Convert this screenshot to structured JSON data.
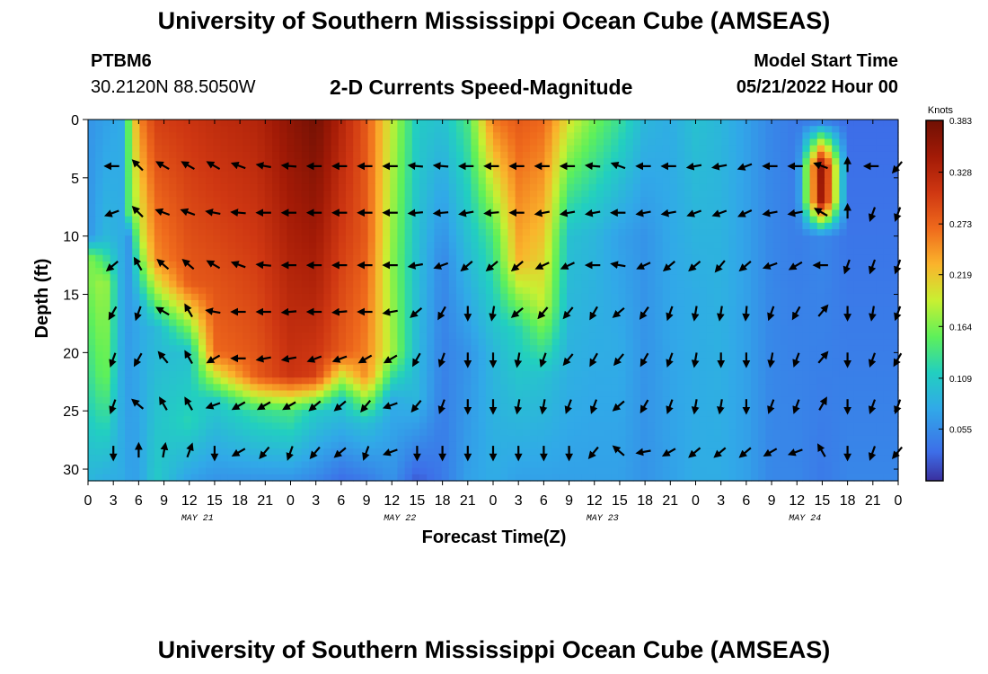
{
  "header": {
    "title": "University of Southern Mississippi Ocean Cube (AMSEAS)",
    "station": "PTBM6",
    "coords": "30.2120N  88.5050W",
    "plot_title": "2-D Currents Speed-Magnitude",
    "start_label": "Model Start Time",
    "start_value": "05/21/2022 Hour 00"
  },
  "footer": {
    "title": "University of Southern Mississippi Ocean Cube (AMSEAS)"
  },
  "chart_data": {
    "type": "heatmap",
    "title": "2-D Currents Speed-Magnitude",
    "xlabel": "Forecast Time(Z)",
    "ylabel": "Depth (ft)",
    "x_ticks": [
      "0",
      "3",
      "6",
      "9",
      "12",
      "15",
      "18",
      "21",
      "0",
      "3",
      "6",
      "9",
      "12",
      "15",
      "18",
      "21",
      "0",
      "3",
      "6",
      "9",
      "12",
      "15",
      "18",
      "21",
      "0",
      "3",
      "6",
      "9",
      "12",
      "15",
      "18",
      "21",
      "0"
    ],
    "date_labels": [
      {
        "hour": 12,
        "label": "MAY 21"
      },
      {
        "hour": 36,
        "label": "MAY 22"
      },
      {
        "hour": 60,
        "label": "MAY 23"
      },
      {
        "hour": 84,
        "label": "MAY 24"
      }
    ],
    "x_range_hours": [
      0,
      96
    ],
    "y_ticks": [
      0,
      5,
      10,
      15,
      20,
      25,
      30
    ],
    "y_range_ft": [
      0,
      31
    ],
    "colorbar": {
      "unit": "Knots",
      "min": 0,
      "max": 0.383,
      "tick_labels": [
        "0.383",
        "0.328",
        "0.273",
        "0.219",
        "0.164",
        "0.109",
        "0.055"
      ],
      "tick_values": [
        0.383,
        0.328,
        0.273,
        0.219,
        0.164,
        0.109,
        0.055
      ]
    },
    "speed_profile_knots": [
      {
        "hour": 0,
        "profile": [
          [
            0,
            0.06
          ],
          [
            10,
            0.06
          ],
          [
            12,
            0.17
          ],
          [
            31,
            0.09
          ]
        ]
      },
      {
        "hour": 2,
        "profile": [
          [
            0,
            0.07
          ],
          [
            10,
            0.09
          ],
          [
            14,
            0.18
          ],
          [
            22,
            0.16
          ],
          [
            31,
            0.08
          ]
        ]
      },
      {
        "hour": 4,
        "profile": [
          [
            0,
            0.08
          ],
          [
            31,
            0.08
          ]
        ]
      },
      {
        "hour": 5,
        "profile": [
          [
            0,
            0.17
          ],
          [
            8,
            0.16
          ],
          [
            10,
            0.06
          ],
          [
            31,
            0.07
          ]
        ]
      },
      {
        "hour": 6,
        "profile": [
          [
            0,
            0.25
          ],
          [
            10,
            0.18
          ],
          [
            16,
            0.08
          ],
          [
            31,
            0.07
          ]
        ]
      },
      {
        "hour": 8,
        "profile": [
          [
            0,
            0.3
          ],
          [
            12,
            0.25
          ],
          [
            18,
            0.09
          ],
          [
            24,
            0.1
          ],
          [
            31,
            0.11
          ]
        ]
      },
      {
        "hour": 12,
        "profile": [
          [
            0,
            0.31
          ],
          [
            14,
            0.28
          ],
          [
            20,
            0.1
          ],
          [
            26,
            0.12
          ],
          [
            31,
            0.07
          ]
        ]
      },
      {
        "hour": 15,
        "profile": [
          [
            0,
            0.32
          ],
          [
            20,
            0.27
          ],
          [
            24,
            0.11
          ],
          [
            31,
            0.06
          ]
        ]
      },
      {
        "hour": 20,
        "profile": [
          [
            0,
            0.33
          ],
          [
            22,
            0.28
          ],
          [
            25,
            0.13
          ],
          [
            31,
            0.06
          ]
        ]
      },
      {
        "hour": 24,
        "profile": [
          [
            0,
            0.36
          ],
          [
            22,
            0.31
          ],
          [
            25,
            0.14
          ],
          [
            31,
            0.06
          ]
        ]
      },
      {
        "hour": 27,
        "profile": [
          [
            0,
            0.38
          ],
          [
            15,
            0.33
          ],
          [
            22,
            0.3
          ],
          [
            25,
            0.11
          ],
          [
            31,
            0.05
          ]
        ]
      },
      {
        "hour": 30,
        "profile": [
          [
            0,
            0.33
          ],
          [
            20,
            0.28
          ],
          [
            24,
            0.11
          ],
          [
            31,
            0.03
          ]
        ]
      },
      {
        "hour": 33,
        "profile": [
          [
            0,
            0.28
          ],
          [
            10,
            0.28
          ],
          [
            22,
            0.25
          ],
          [
            26,
            0.1
          ],
          [
            31,
            0.04
          ]
        ]
      },
      {
        "hour": 36,
        "profile": [
          [
            0,
            0.19
          ],
          [
            12,
            0.17
          ],
          [
            20,
            0.18
          ],
          [
            24,
            0.08
          ],
          [
            31,
            0.06
          ]
        ]
      },
      {
        "hour": 39,
        "profile": [
          [
            0,
            0.11
          ],
          [
            10,
            0.1
          ],
          [
            24,
            0.09
          ],
          [
            31,
            0.02
          ]
        ]
      },
      {
        "hour": 42,
        "profile": [
          [
            0,
            0.1
          ],
          [
            12,
            0.05
          ],
          [
            31,
            0.04
          ]
        ]
      },
      {
        "hour": 45,
        "profile": [
          [
            0,
            0.14
          ],
          [
            10,
            0.1
          ],
          [
            20,
            0.06
          ],
          [
            31,
            0.07
          ]
        ]
      },
      {
        "hour": 48,
        "profile": [
          [
            0,
            0.26
          ],
          [
            10,
            0.14
          ],
          [
            20,
            0.09
          ],
          [
            31,
            0.08
          ]
        ]
      },
      {
        "hour": 51,
        "profile": [
          [
            0,
            0.28
          ],
          [
            12,
            0.23
          ],
          [
            18,
            0.12
          ],
          [
            31,
            0.07
          ]
        ]
      },
      {
        "hour": 54,
        "profile": [
          [
            0,
            0.27
          ],
          [
            16,
            0.19
          ],
          [
            22,
            0.1
          ],
          [
            31,
            0.07
          ]
        ]
      },
      {
        "hour": 57,
        "profile": [
          [
            0,
            0.2
          ],
          [
            10,
            0.1
          ],
          [
            31,
            0.07
          ]
        ]
      },
      {
        "hour": 60,
        "profile": [
          [
            0,
            0.16
          ],
          [
            10,
            0.09
          ],
          [
            31,
            0.07
          ]
        ]
      },
      {
        "hour": 63,
        "profile": [
          [
            0,
            0.13
          ],
          [
            10,
            0.07
          ],
          [
            20,
            0.08
          ],
          [
            31,
            0.07
          ]
        ]
      },
      {
        "hour": 66,
        "profile": [
          [
            0,
            0.09
          ],
          [
            10,
            0.06
          ],
          [
            31,
            0.06
          ]
        ]
      },
      {
        "hour": 69,
        "profile": [
          [
            0,
            0.08
          ],
          [
            31,
            0.07
          ]
        ]
      },
      {
        "hour": 72,
        "profile": [
          [
            0,
            0.1
          ],
          [
            15,
            0.08
          ],
          [
            31,
            0.08
          ]
        ]
      },
      {
        "hour": 75,
        "profile": [
          [
            0,
            0.09
          ],
          [
            31,
            0.08
          ]
        ]
      },
      {
        "hour": 78,
        "profile": [
          [
            0,
            0.07
          ],
          [
            31,
            0.07
          ]
        ]
      },
      {
        "hour": 81,
        "profile": [
          [
            0,
            0.05
          ],
          [
            31,
            0.05
          ]
        ]
      },
      {
        "hour": 84,
        "profile": [
          [
            0,
            0.04
          ],
          [
            31,
            0.05
          ]
        ]
      },
      {
        "hour": 87,
        "profile": [
          [
            0,
            0.03
          ],
          [
            4,
            0.37
          ],
          [
            7,
            0.36
          ],
          [
            10,
            0.05
          ],
          [
            31,
            0.04
          ]
        ]
      },
      {
        "hour": 90,
        "profile": [
          [
            0,
            0.03
          ],
          [
            31,
            0.05
          ]
        ]
      },
      {
        "hour": 96,
        "profile": [
          [
            0,
            0.03
          ],
          [
            31,
            0.05
          ]
        ]
      }
    ],
    "current_vector_grid": {
      "hours": [
        0,
        3,
        6,
        9,
        12,
        15,
        18,
        21,
        24,
        27,
        30,
        33,
        36,
        39,
        42,
        45,
        48,
        51,
        54,
        57,
        60,
        63,
        66,
        69,
        72,
        75,
        78,
        81,
        84,
        87,
        90,
        93,
        96
      ],
      "depths_ft": [
        0,
        4,
        8,
        12.5,
        16.5,
        20.5,
        24.5,
        28.5
      ],
      "directions_deg": [
        [
          -1,
          -1,
          -1,
          -1,
          -1,
          -1,
          -1,
          -1,
          -1,
          -1,
          -1,
          -1,
          -1,
          -1,
          -1,
          -1,
          -1,
          -1,
          -1,
          -1,
          -1,
          -1,
          -1,
          -1,
          -1,
          -1,
          -1,
          -1,
          -1,
          -1,
          -1,
          -1,
          -1
        ],
        [
          -1,
          270,
          315,
          300,
          300,
          300,
          290,
          280,
          275,
          270,
          270,
          270,
          270,
          275,
          275,
          270,
          270,
          270,
          270,
          270,
          275,
          290,
          270,
          270,
          260,
          260,
          250,
          270,
          270,
          290,
          0,
          270,
          220
        ],
        [
          -1,
          250,
          315,
          290,
          290,
          280,
          275,
          270,
          270,
          270,
          270,
          270,
          270,
          265,
          265,
          260,
          265,
          270,
          260,
          260,
          260,
          270,
          260,
          260,
          250,
          250,
          245,
          260,
          260,
          300,
          0,
          200,
          200
        ],
        [
          -1,
          230,
          330,
          310,
          310,
          300,
          290,
          275,
          270,
          270,
          270,
          270,
          270,
          260,
          250,
          230,
          230,
          230,
          245,
          245,
          270,
          280,
          245,
          230,
          230,
          220,
          230,
          250,
          240,
          270,
          200,
          200,
          200
        ],
        [
          -1,
          210,
          200,
          300,
          330,
          280,
          270,
          270,
          265,
          270,
          265,
          270,
          260,
          230,
          210,
          180,
          190,
          230,
          220,
          220,
          210,
          230,
          215,
          200,
          190,
          190,
          185,
          200,
          210,
          40,
          180,
          190,
          200
        ],
        [
          -1,
          200,
          210,
          320,
          330,
          240,
          270,
          260,
          260,
          250,
          250,
          240,
          240,
          210,
          200,
          180,
          180,
          190,
          200,
          220,
          210,
          220,
          210,
          200,
          190,
          180,
          180,
          190,
          200,
          40,
          180,
          200,
          210
        ],
        [
          -1,
          200,
          310,
          330,
          330,
          250,
          240,
          240,
          240,
          230,
          230,
          220,
          250,
          220,
          200,
          180,
          180,
          190,
          190,
          200,
          200,
          230,
          210,
          200,
          190,
          190,
          180,
          200,
          200,
          30,
          180,
          200,
          200
        ],
        [
          -1,
          180,
          0,
          10,
          20,
          180,
          240,
          220,
          200,
          220,
          230,
          200,
          250,
          180,
          180,
          180,
          180,
          180,
          180,
          180,
          220,
          310,
          260,
          240,
          230,
          230,
          230,
          240,
          250,
          330,
          180,
          200,
          220
        ]
      ]
    }
  }
}
